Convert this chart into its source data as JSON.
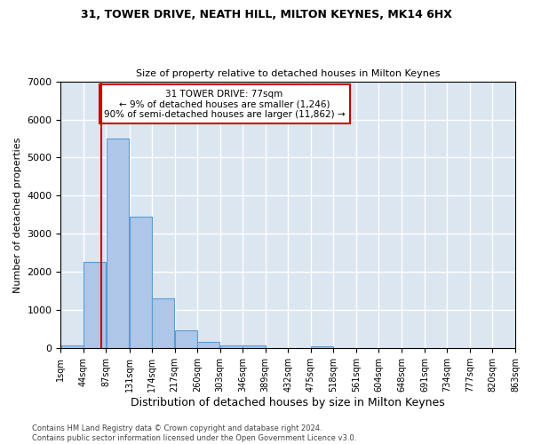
{
  "title1": "31, TOWER DRIVE, NEATH HILL, MILTON KEYNES, MK14 6HX",
  "title2": "Size of property relative to detached houses in Milton Keynes",
  "xlabel": "Distribution of detached houses by size in Milton Keynes",
  "ylabel": "Number of detached properties",
  "footer1": "Contains HM Land Registry data © Crown copyright and database right 2024.",
  "footer2": "Contains public sector information licensed under the Open Government Licence v3.0.",
  "annotation_line1": "31 TOWER DRIVE: 77sqm",
  "annotation_line2": "← 9% of detached houses are smaller (1,246)",
  "annotation_line3": "90% of semi-detached houses are larger (11,862) →",
  "property_sqm": 77,
  "bar_color": "#aec6e8",
  "bar_edge_color": "#5b9bd5",
  "redline_color": "#cc0000",
  "annotation_box_color": "#ffffff",
  "annotation_box_edge": "#cc0000",
  "bg_color": "#dce6f1",
  "grid_color": "#ffffff",
  "bins": [
    1,
    44,
    87,
    131,
    174,
    217,
    260,
    303,
    346,
    389,
    432,
    475,
    518,
    561,
    604,
    648,
    691,
    734,
    777,
    820,
    863
  ],
  "counts": [
    75,
    2270,
    5500,
    3450,
    1320,
    480,
    165,
    80,
    70,
    0,
    0,
    60,
    0,
    0,
    0,
    0,
    0,
    0,
    0,
    0
  ],
  "ylim": [
    0,
    7000
  ],
  "yticks": [
    0,
    1000,
    2000,
    3000,
    4000,
    5000,
    6000,
    7000
  ]
}
